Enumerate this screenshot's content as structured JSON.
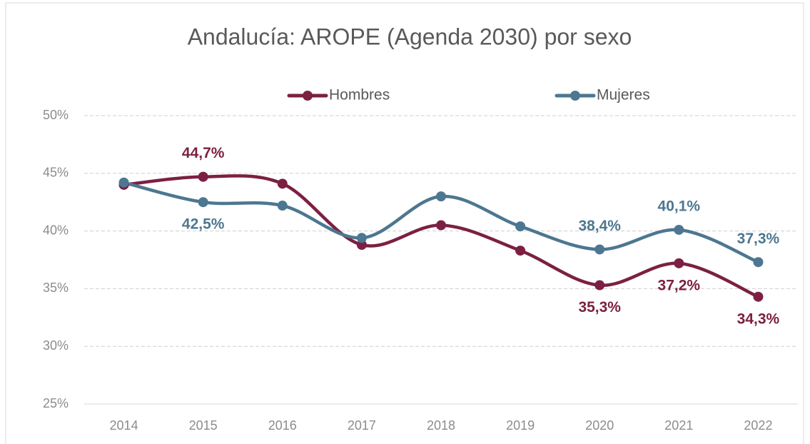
{
  "chart_data": {
    "type": "line",
    "title": "Andalucía: AROPE (Agenda 2030) por sexo",
    "categories": [
      "2014",
      "2015",
      "2016",
      "2017",
      "2018",
      "2019",
      "2020",
      "2021",
      "2022"
    ],
    "series": [
      {
        "name": "Hombres",
        "color": "#7b2042",
        "values": [
          44.0,
          44.7,
          44.1,
          38.8,
          40.5,
          38.3,
          35.3,
          37.2,
          34.3
        ],
        "value_labels": [
          null,
          "44,7%",
          null,
          null,
          null,
          null,
          "35,3%",
          "37,2%",
          "34,3%"
        ]
      },
      {
        "name": "Mujeres",
        "color": "#4d7790",
        "values": [
          44.2,
          42.5,
          42.2,
          39.4,
          43.0,
          40.4,
          38.4,
          40.1,
          37.3
        ],
        "value_labels": [
          null,
          "42,5%",
          null,
          null,
          null,
          null,
          "38,4%",
          "40,1%",
          "37,3%"
        ]
      }
    ],
    "ylim": [
      25,
      50
    ],
    "yticks": [
      {
        "value": 25,
        "label": "25%"
      },
      {
        "value": 30,
        "label": "30%"
      },
      {
        "value": 35,
        "label": "35%"
      },
      {
        "value": 40,
        "label": "40%"
      },
      {
        "value": 45,
        "label": "45%"
      },
      {
        "value": 50,
        "label": "50%"
      }
    ],
    "grid": true,
    "smooth": true,
    "legend": "top"
  }
}
